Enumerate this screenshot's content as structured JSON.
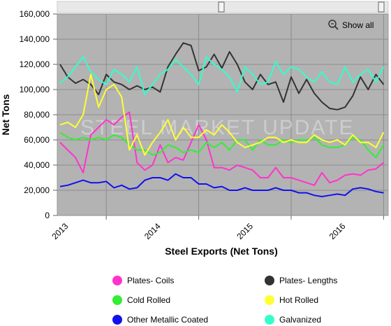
{
  "chart_data": {
    "type": "line",
    "title": "",
    "xlabel": "Steel Exports (Net Tons)",
    "ylabel": "Net Tons",
    "ylim": [
      0,
      160000
    ],
    "yticks": [
      0,
      20000,
      40000,
      60000,
      80000,
      100000,
      120000,
      140000,
      160000
    ],
    "ytick_labels": [
      "0",
      "20,000",
      "40,000",
      "60,000",
      "80,000",
      "100,000",
      "120,000",
      "140,000",
      "160,000"
    ],
    "xlim": [
      2012.47,
      2016.05
    ],
    "xticks": [
      2013,
      2014,
      2015,
      2016
    ],
    "xtick_labels": [
      "2013",
      "2014",
      "2015",
      "2016"
    ],
    "grid": true,
    "legend_position": "bottom",
    "watermark": "STEEL MARKET UPDATE",
    "show_all_label": "Show all",
    "series": [
      {
        "name": "Plates- Coils",
        "color": "#ff33cc",
        "x": [
          2012.5,
          2012.583,
          2012.667,
          2012.75,
          2012.833,
          2012.917,
          2013.0,
          2013.083,
          2013.167,
          2013.25,
          2013.333,
          2013.417,
          2013.5,
          2013.583,
          2013.667,
          2013.75,
          2013.833,
          2013.917,
          2014.0,
          2014.083,
          2014.167,
          2014.25,
          2014.333,
          2014.417,
          2014.5,
          2014.583,
          2014.667,
          2014.75,
          2014.833,
          2014.917,
          2015.0,
          2015.083,
          2015.167,
          2015.25,
          2015.333,
          2015.417,
          2015.5,
          2015.583,
          2015.667,
          2015.75,
          2015.833,
          2015.917,
          2016.0
        ],
        "values": [
          58000,
          52000,
          46000,
          34000,
          64000,
          70000,
          76000,
          72000,
          78000,
          82000,
          42000,
          36000,
          40000,
          56000,
          42000,
          46000,
          44000,
          58000,
          72000,
          60000,
          38000,
          38000,
          36000,
          40000,
          38000,
          36000,
          30000,
          30000,
          38000,
          30000,
          30000,
          28000,
          26000,
          24000,
          34000,
          26000,
          28000,
          32000,
          33000,
          32000,
          36000,
          37000,
          42000
        ]
      },
      {
        "name": "Plates- Lengths",
        "color": "#333333",
        "x": [
          2012.5,
          2012.583,
          2012.667,
          2012.75,
          2012.833,
          2012.917,
          2013.0,
          2013.083,
          2013.167,
          2013.25,
          2013.333,
          2013.417,
          2013.5,
          2013.583,
          2013.667,
          2013.75,
          2013.833,
          2013.917,
          2014.0,
          2014.083,
          2014.167,
          2014.25,
          2014.333,
          2014.417,
          2014.5,
          2014.583,
          2014.667,
          2014.75,
          2014.833,
          2014.917,
          2015.0,
          2015.083,
          2015.167,
          2015.25,
          2015.333,
          2015.417,
          2015.5,
          2015.583,
          2015.667,
          2015.75,
          2015.833,
          2015.917,
          2016.0
        ],
        "values": [
          120000,
          110000,
          105000,
          108000,
          104000,
          96000,
          112000,
          106000,
          104000,
          100000,
          103000,
          100000,
          102000,
          98000,
          118000,
          128000,
          137000,
          135000,
          115000,
          118000,
          128000,
          117000,
          130000,
          120000,
          106000,
          100000,
          112000,
          104000,
          106000,
          90000,
          110000,
          97000,
          108000,
          97000,
          90000,
          85000,
          84000,
          86000,
          95000,
          110000,
          100000,
          112000,
          104000
        ]
      },
      {
        "name": "Cold Rolled",
        "color": "#33ee33",
        "x": [
          2012.5,
          2012.583,
          2012.667,
          2012.75,
          2012.833,
          2012.917,
          2013.0,
          2013.083,
          2013.167,
          2013.25,
          2013.333,
          2013.417,
          2013.5,
          2013.583,
          2013.667,
          2013.75,
          2013.833,
          2013.917,
          2014.0,
          2014.083,
          2014.167,
          2014.25,
          2014.333,
          2014.417,
          2014.5,
          2014.583,
          2014.667,
          2014.75,
          2014.833,
          2014.917,
          2015.0,
          2015.083,
          2015.167,
          2015.25,
          2015.333,
          2015.417,
          2015.5,
          2015.583,
          2015.667,
          2015.75,
          2015.833,
          2015.917,
          2016.0
        ],
        "values": [
          66000,
          62000,
          60000,
          62000,
          60000,
          62000,
          60000,
          64000,
          62000,
          56000,
          52000,
          52000,
          48000,
          50000,
          56000,
          54000,
          50000,
          52000,
          50000,
          58000,
          54000,
          58000,
          52000,
          60000,
          60000,
          52000,
          60000,
          56000,
          56000,
          60000,
          58000,
          60000,
          60000,
          62000,
          56000,
          54000,
          54000,
          56000,
          62000,
          60000,
          52000,
          46000,
          56000
        ]
      },
      {
        "name": "Hot Rolled",
        "color": "#ffff33",
        "x": [
          2012.5,
          2012.583,
          2012.667,
          2012.75,
          2012.833,
          2012.917,
          2013.0,
          2013.083,
          2013.167,
          2013.25,
          2013.333,
          2013.417,
          2013.5,
          2013.583,
          2013.667,
          2013.75,
          2013.833,
          2013.917,
          2014.0,
          2014.083,
          2014.167,
          2014.25,
          2014.333,
          2014.417,
          2014.5,
          2014.583,
          2014.667,
          2014.75,
          2014.833,
          2014.917,
          2015.0,
          2015.083,
          2015.167,
          2015.25,
          2015.333,
          2015.417,
          2015.5,
          2015.583,
          2015.667,
          2015.75,
          2015.833,
          2015.917,
          2016.0
        ],
        "values": [
          72000,
          74000,
          70000,
          80000,
          112000,
          86000,
          100000,
          104000,
          94000,
          52000,
          64000,
          48000,
          58000,
          66000,
          76000,
          60000,
          70000,
          62000,
          62000,
          68000,
          64000,
          72000,
          66000,
          58000,
          54000,
          56000,
          58000,
          62000,
          62000,
          58000,
          60000,
          58000,
          58000,
          64000,
          60000,
          58000,
          60000,
          56000,
          64000,
          58000,
          58000,
          54000,
          66000
        ]
      },
      {
        "name": "Other Metallic Coated",
        "color": "#1111ee",
        "x": [
          2012.5,
          2012.583,
          2012.667,
          2012.75,
          2012.833,
          2012.917,
          2013.0,
          2013.083,
          2013.167,
          2013.25,
          2013.333,
          2013.417,
          2013.5,
          2013.583,
          2013.667,
          2013.75,
          2013.833,
          2013.917,
          2014.0,
          2014.083,
          2014.167,
          2014.25,
          2014.333,
          2014.417,
          2014.5,
          2014.583,
          2014.667,
          2014.75,
          2014.833,
          2014.917,
          2015.0,
          2015.083,
          2015.167,
          2015.25,
          2015.333,
          2015.417,
          2015.5,
          2015.583,
          2015.667,
          2015.75,
          2015.833,
          2015.917,
          2016.0
        ],
        "values": [
          23000,
          24000,
          26000,
          28000,
          26000,
          26000,
          27000,
          22000,
          24000,
          21000,
          22000,
          28000,
          30000,
          30000,
          28000,
          33000,
          30000,
          30000,
          25000,
          25000,
          22000,
          23000,
          20000,
          20000,
          22000,
          20000,
          20000,
          20000,
          22000,
          20000,
          20000,
          18000,
          18000,
          16000,
          15000,
          16000,
          17000,
          16000,
          21000,
          22000,
          21000,
          19000,
          18000
        ]
      },
      {
        "name": "Galvanized",
        "color": "#33ffcc",
        "x": [
          2012.5,
          2012.583,
          2012.667,
          2012.75,
          2012.833,
          2012.917,
          2013.0,
          2013.083,
          2013.167,
          2013.25,
          2013.333,
          2013.417,
          2013.5,
          2013.583,
          2013.667,
          2013.75,
          2013.833,
          2013.917,
          2014.0,
          2014.083,
          2014.167,
          2014.25,
          2014.333,
          2014.417,
          2014.5,
          2014.583,
          2014.667,
          2014.75,
          2014.833,
          2014.917,
          2015.0,
          2015.083,
          2015.167,
          2015.25,
          2015.333,
          2015.417,
          2015.5,
          2015.583,
          2015.667,
          2015.75,
          2015.833,
          2015.917,
          2016.0
        ],
        "values": [
          105000,
          110000,
          118000,
          126000,
          114000,
          108000,
          104000,
          116000,
          112000,
          106000,
          118000,
          96000,
          104000,
          112000,
          116000,
          124000,
          118000,
          112000,
          104000,
          126000,
          120000,
          116000,
          110000,
          98000,
          118000,
          112000,
          104000,
          106000,
          122000,
          112000,
          118000,
          116000,
          110000,
          106000,
          114000,
          106000,
          104000,
          118000,
          106000,
          112000,
          116000,
          106000,
          118000
        ]
      }
    ]
  }
}
